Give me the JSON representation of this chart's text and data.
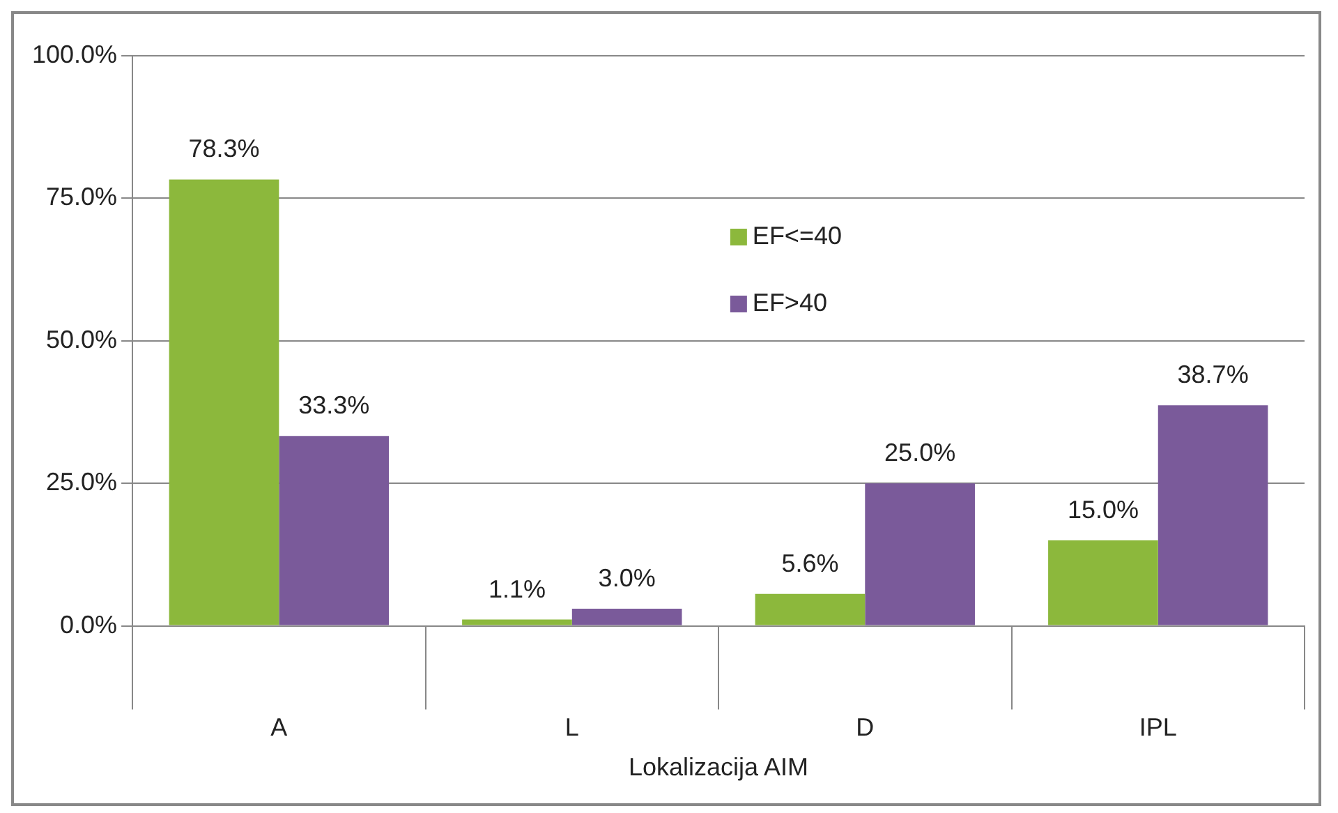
{
  "chart_data": {
    "type": "bar",
    "xlabel": "Lokalizacija AIM",
    "categories": [
      "A",
      "L",
      "D",
      "IPL"
    ],
    "series": [
      {
        "name": "EF<=40",
        "color": "#8cb83c",
        "values": [
          78.3,
          1.1,
          5.6,
          15.0
        ],
        "value_labels": [
          "78.3%",
          "1.1%",
          "5.6%",
          "15.0%"
        ]
      },
      {
        "name": "EF>40",
        "color": "#7a5a9a",
        "values": [
          33.3,
          3.0,
          25.0,
          38.7
        ],
        "value_labels": [
          "33.3%",
          "3.0%",
          "25.0%",
          "38.7%"
        ]
      }
    ],
    "ylim": [
      0,
      100
    ],
    "yticks": [
      {
        "value": 0,
        "label": "0.0%"
      },
      {
        "value": 25,
        "label": "25.0%"
      },
      {
        "value": 50,
        "label": "50.0%"
      },
      {
        "value": 75,
        "label": "75.0%"
      },
      {
        "value": 100,
        "label": "100.0%"
      }
    ],
    "grid": "y",
    "legend": "top"
  }
}
